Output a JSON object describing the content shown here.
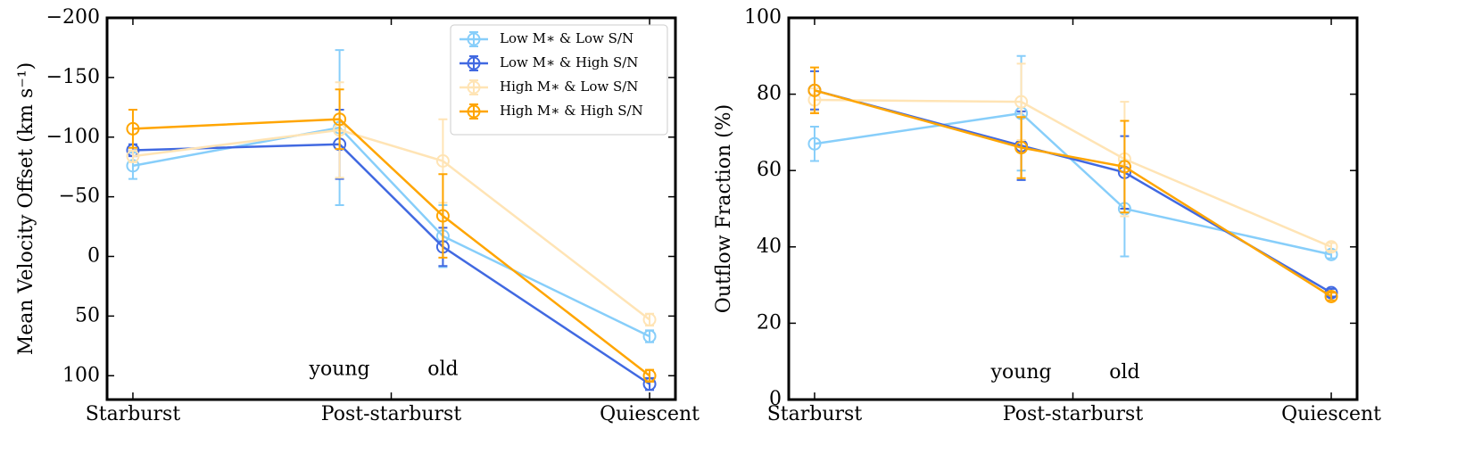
{
  "chart_data": [
    {
      "type": "line",
      "ylabel": "Mean Velocity Offset (km s⁻¹)",
      "x": [
        0,
        0.8,
        1.2,
        2
      ],
      "xlim": [
        -0.1,
        2.1
      ],
      "xticks": [
        {
          "value": 0,
          "label": "Starburst"
        },
        {
          "value": 1,
          "label": "Post-starburst"
        },
        {
          "value": 2,
          "label": "Quiescent"
        }
      ],
      "ylim": [
        120,
        -200
      ],
      "yticks": [
        {
          "value": -200,
          "label": "−200"
        },
        {
          "value": -150,
          "label": "−150"
        },
        {
          "value": -100,
          "label": "−100"
        },
        {
          "value": -50,
          "label": "−50"
        },
        0,
        50,
        100
      ],
      "legend": "upper right",
      "annotations": [
        {
          "text": "young",
          "x": 0.8,
          "y": 95
        },
        {
          "text": "old",
          "x": 1.2,
          "y": 95
        }
      ],
      "series": [
        {
          "name": "Low M∗ & Low S/N",
          "color": "#87cefa",
          "values": [
            -76,
            -108,
            -17,
            67
          ],
          "errors": [
            11,
            65,
            26,
            5
          ]
        },
        {
          "name": "Low M∗ & High S/N",
          "color": "#4169e1",
          "values": [
            -89,
            -94,
            -8,
            107
          ],
          "errors": [
            5,
            29,
            16,
            5
          ]
        },
        {
          "name": "High M∗ & Low S/N",
          "color": "#ffe4b5",
          "values": [
            -84,
            -106,
            -80,
            53
          ],
          "errors": [
            5,
            40,
            35,
            5
          ]
        },
        {
          "name": "High M∗ & High S/N",
          "color": "#ffa500",
          "values": [
            -107,
            -115,
            -34,
            100
          ],
          "errors": [
            16,
            25,
            35,
            5
          ]
        }
      ]
    },
    {
      "type": "line",
      "ylabel": "Outflow Fraction (%)",
      "x": [
        0,
        0.8,
        1.2,
        2
      ],
      "xlim": [
        -0.1,
        2.1
      ],
      "xticks": [
        {
          "value": 0,
          "label": "Starburst"
        },
        {
          "value": 1,
          "label": "Post-starburst"
        },
        {
          "value": 2,
          "label": "Quiescent"
        }
      ],
      "ylim": [
        0,
        100
      ],
      "yticks": [
        0,
        20,
        40,
        60,
        80,
        100
      ],
      "annotations": [
        {
          "text": "young",
          "x": 0.8,
          "y": 7
        },
        {
          "text": "old",
          "x": 1.2,
          "y": 7
        }
      ],
      "series": [
        {
          "color": "#87cefa",
          "values": [
            67,
            75,
            50,
            38
          ],
          "errors": [
            4.5,
            15,
            12.5,
            1
          ]
        },
        {
          "color": "#4169e1",
          "values": [
            81,
            66.5,
            59.5,
            28
          ],
          "errors": [
            5,
            9,
            9.5,
            1
          ]
        },
        {
          "color": "#ffe4b5",
          "values": [
            78.5,
            78,
            63,
            40
          ],
          "errors": [
            3,
            10,
            15,
            1
          ]
        },
        {
          "color": "#ffa500",
          "values": [
            81,
            66,
            61,
            27
          ],
          "errors": [
            6,
            8,
            12,
            1
          ]
        }
      ]
    }
  ]
}
